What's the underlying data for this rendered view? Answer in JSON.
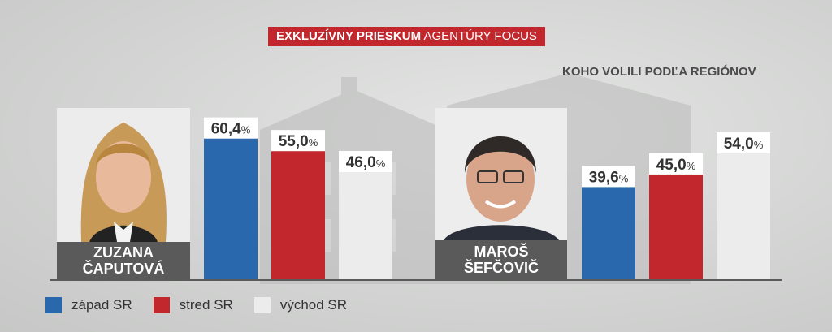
{
  "header": {
    "badge_bold": "EXKLUZÍVNY PRIESKUM",
    "badge_regular": "AGENTÚRY FOCUS"
  },
  "subtitle": "KOHO VOLILI PODĽA REGIÓNOV",
  "candidates": [
    {
      "name_line1": "ZUZANA",
      "name_line2": "ČAPUTOVÁ"
    },
    {
      "name_line1": "MAROŠ",
      "name_line2": "ŠEFČOVIČ"
    }
  ],
  "legend": [
    {
      "label": "západ SR",
      "color": "#2a68ae"
    },
    {
      "label": "stred SR",
      "color": "#c1272d"
    },
    {
      "label": "východ SR",
      "color": "#ececec"
    }
  ],
  "chart_data": {
    "type": "bar",
    "categories": [
      "ZUZANA ČAPUTOVÁ",
      "MAROŠ ŠEFČOVIČ"
    ],
    "series": [
      {
        "name": "západ SR",
        "values": [
          60.4,
          39.6
        ],
        "labels": [
          "60,4",
          "39,6"
        ],
        "color": "#2a68ae"
      },
      {
        "name": "stred SR",
        "values": [
          55.0,
          45.0
        ],
        "labels": [
          "55,0",
          "45,0"
        ],
        "color": "#c1272d"
      },
      {
        "name": "východ SR",
        "values": [
          46.0,
          54.0
        ],
        "labels": [
          "46,0",
          "54,0"
        ],
        "color": "#ececec"
      }
    ],
    "unit": "%",
    "title": "KOHO VOLILI PODĽA REGIÓNOV",
    "ylim": [
      0,
      100
    ]
  }
}
